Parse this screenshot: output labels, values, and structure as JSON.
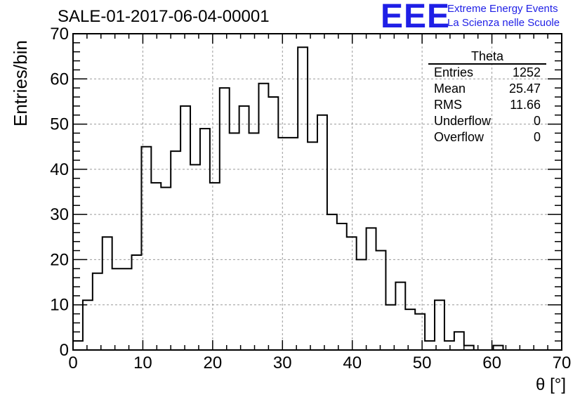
{
  "header": {
    "title": "SALE-01-2017-06-04-00001",
    "logo": "EEE",
    "brand_line1": "Extreme Energy Events",
    "brand_line2": "La Scienza nelle Scuole"
  },
  "stats": {
    "name": "Theta",
    "rows": [
      {
        "label": "Entries",
        "value": "1252"
      },
      {
        "label": "Mean",
        "value": "25.47"
      },
      {
        "label": "RMS",
        "value": "11.66"
      },
      {
        "label": "Underflow",
        "value": "0"
      },
      {
        "label": "Overflow",
        "value": "0"
      }
    ]
  },
  "colors": {
    "accent": "#1f1fe6",
    "line": "#000000",
    "grid": "#999999"
  },
  "chart_data": {
    "type": "bar",
    "title": "SALE-01-2017-06-04-00001",
    "xlabel": "θ [°]",
    "ylabel": "Entries/bin",
    "xlim": [
      0,
      70
    ],
    "ylim": [
      0,
      70
    ],
    "bin_width": 1.4,
    "x_ticks": [
      "0",
      "10",
      "20",
      "30",
      "40",
      "50",
      "60",
      "70"
    ],
    "y_ticks": [
      "0",
      "10",
      "20",
      "30",
      "40",
      "50",
      "60",
      "70"
    ],
    "grid": true,
    "values": [
      2,
      11,
      17,
      25,
      18,
      18,
      21,
      45,
      37,
      36,
      44,
      54,
      41,
      49,
      37,
      58,
      48,
      54,
      48,
      59,
      56,
      47,
      47,
      67,
      46,
      52,
      30,
      28,
      25,
      20,
      27,
      22,
      10,
      15,
      9,
      8,
      2,
      11,
      2,
      4,
      1,
      0,
      0,
      1,
      0,
      0,
      0,
      0,
      0,
      0
    ]
  }
}
